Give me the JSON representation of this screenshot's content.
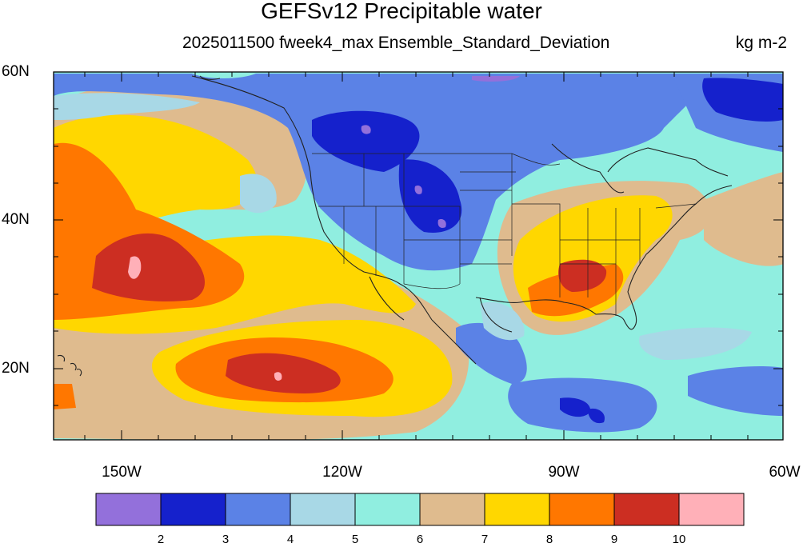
{
  "title": "GEFSv12 Precipitable water",
  "subtitle": "2025011500 fweek4_max Ensemble_Standard_Deviation",
  "units": "kg m-2",
  "lat_labels": [
    "60N",
    "40N",
    "20N"
  ],
  "lon_labels": [
    "150W",
    "120W",
    "90W",
    "60W"
  ],
  "colorbar": {
    "colors": [
      "#9370db",
      "#1521cc",
      "#5b82e6",
      "#a8d8e6",
      "#90eee0",
      "#dfbb8e",
      "#ffd700",
      "#ff7700",
      "#cc2e22",
      "#ffb0b8"
    ],
    "labels": [
      "2",
      "3",
      "4",
      "5",
      "6",
      "7",
      "8",
      "9",
      "10"
    ]
  }
}
